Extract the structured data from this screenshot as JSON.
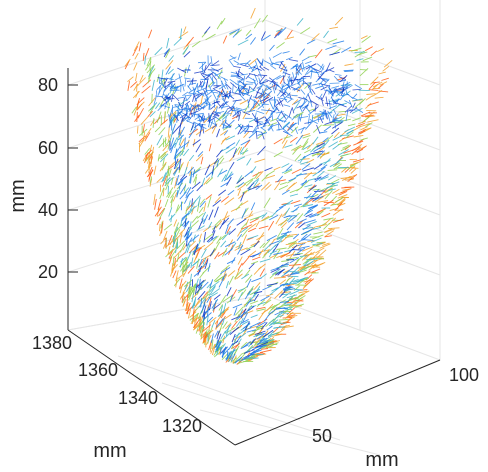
{
  "chart_data": {
    "type": "quiver3d",
    "title": "",
    "xlabel": "mm",
    "ylabel": "mm",
    "zlabel": "mm",
    "z_ticks": [
      "20",
      "40",
      "60",
      "80"
    ],
    "y_ticks": [
      "1320",
      "1340",
      "1360",
      "1380"
    ],
    "x_ticks": [
      "50",
      "100"
    ],
    "zlim": [
      5,
      85
    ],
    "ylim": [
      1310,
      1385
    ],
    "xlim": [
      20,
      110
    ],
    "grid": true,
    "colormap": [
      "#0a2fc2",
      "#1e7be8",
      "#3bb3c9",
      "#8fd14f",
      "#f3a12b",
      "#ff5a12"
    ],
    "shape": "left-ventricle-shell",
    "description_series": [
      {
        "name": "",
        "surface": "endocardium",
        "dominant_color": "#1e50d8"
      },
      {
        "name": "",
        "surface": "epicardium",
        "dominant_color": "#ff6a1f"
      }
    ]
  }
}
